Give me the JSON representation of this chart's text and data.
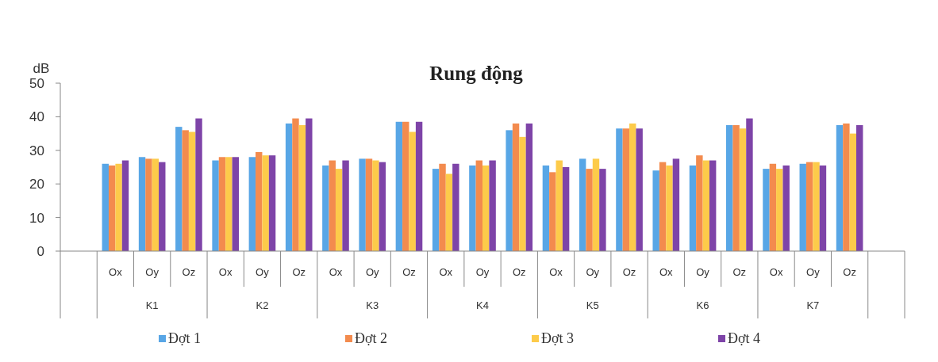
{
  "chart_data": {
    "type": "bar",
    "title": "Rung động",
    "ylabel": "dB",
    "categories": [
      null,
      "Ox",
      "Oy",
      "Oz",
      "Ox",
      "Oy",
      "Oz",
      "Ox",
      "Oy",
      "Oz",
      "Ox",
      "Oy",
      "Oz",
      "Ox",
      "Oy",
      "Oz",
      "Ox",
      "Oy",
      "Oz",
      "Ox",
      "Oy",
      "Oz",
      null
    ],
    "annotations": [
      "K1",
      "K2",
      "K3",
      "K4",
      "K5",
      "K6",
      "K7"
    ],
    "series": [
      {
        "name": "Đợt 1",
        "color": "#58a6e6",
        "values": [
          null,
          26,
          28,
          37,
          27,
          28,
          38,
          25.5,
          27.5,
          38.5,
          24.5,
          25.5,
          36,
          25.5,
          27.5,
          36.5,
          24,
          25.5,
          37.5,
          24.5,
          26,
          37.5,
          null
        ]
      },
      {
        "name": "Đợt 2",
        "color": "#f38b4e",
        "values": [
          null,
          25.5,
          27.5,
          36,
          28,
          29.5,
          39.5,
          27,
          27.5,
          38.5,
          26,
          27,
          38,
          23.5,
          24.5,
          36.5,
          26.5,
          28.5,
          37.5,
          26,
          26.5,
          38,
          null
        ]
      },
      {
        "name": "Đợt 3",
        "color": "#fdcb4a",
        "values": [
          null,
          26,
          27.5,
          35.5,
          28,
          28.5,
          37.5,
          24.5,
          27,
          35.5,
          23,
          25.5,
          34,
          27,
          27.5,
          38,
          25.5,
          27,
          36.5,
          24.5,
          26.5,
          35,
          null
        ]
      },
      {
        "name": "Đợt 4",
        "color": "#7e44a8",
        "values": [
          null,
          27,
          26.5,
          39.5,
          28,
          28.5,
          39.5,
          27,
          26.5,
          38.5,
          26,
          27,
          38,
          25,
          24.5,
          36.5,
          27.5,
          27,
          39.5,
          25.5,
          25.5,
          37.5,
          null
        ]
      }
    ],
    "ylim": [
      0,
      50
    ],
    "yticks": [
      0,
      10,
      20,
      30,
      40,
      50
    ],
    "grid": false,
    "legend": "bottom"
  }
}
